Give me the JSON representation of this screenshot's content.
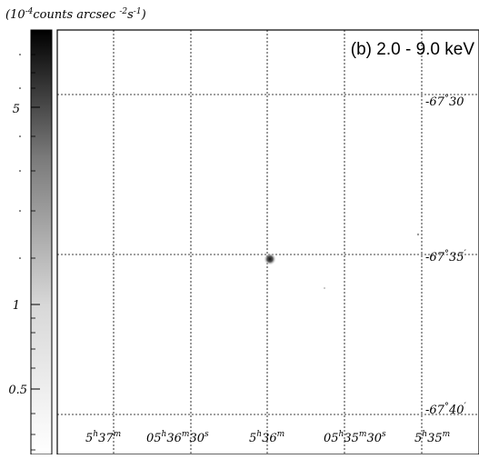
{
  "colorbar": {
    "unit_base": "10",
    "unit_exp": "-4",
    "unit_main": "counts arcsec",
    "unit_exp2": "-2",
    "unit_s": "s",
    "unit_exp3": "-1",
    "unit_close": ")",
    "unit_open": "(",
    "ticks": [
      {
        "label": "5",
        "value": 5
      },
      {
        "label": "1",
        "value": 1
      },
      {
        "label": "0.5",
        "value": 0.5
      }
    ],
    "scale": "log"
  },
  "image": {
    "panel_label": "(b) 2.0 - 9.0  keV",
    "background": "#ffffff",
    "grid_color": "#000000"
  },
  "dec_labels": [
    {
      "deg": "-67",
      "min": "30",
      "sym_deg": "°",
      "sym_min": "′"
    },
    {
      "deg": "-67",
      "min": "35",
      "sym_deg": "°",
      "sym_min": "′"
    },
    {
      "deg": "-67",
      "min": "40",
      "sym_deg": "°",
      "sym_min": "′"
    }
  ],
  "ra_labels": [
    {
      "h": "5",
      "m": "37",
      "s": ""
    },
    {
      "h": "05",
      "m": "36",
      "s": "30"
    },
    {
      "h": "5",
      "m": "36",
      "s": ""
    },
    {
      "h": "05",
      "m": "35",
      "s": "30"
    },
    {
      "h": "5",
      "m": "35",
      "s": ""
    }
  ]
}
